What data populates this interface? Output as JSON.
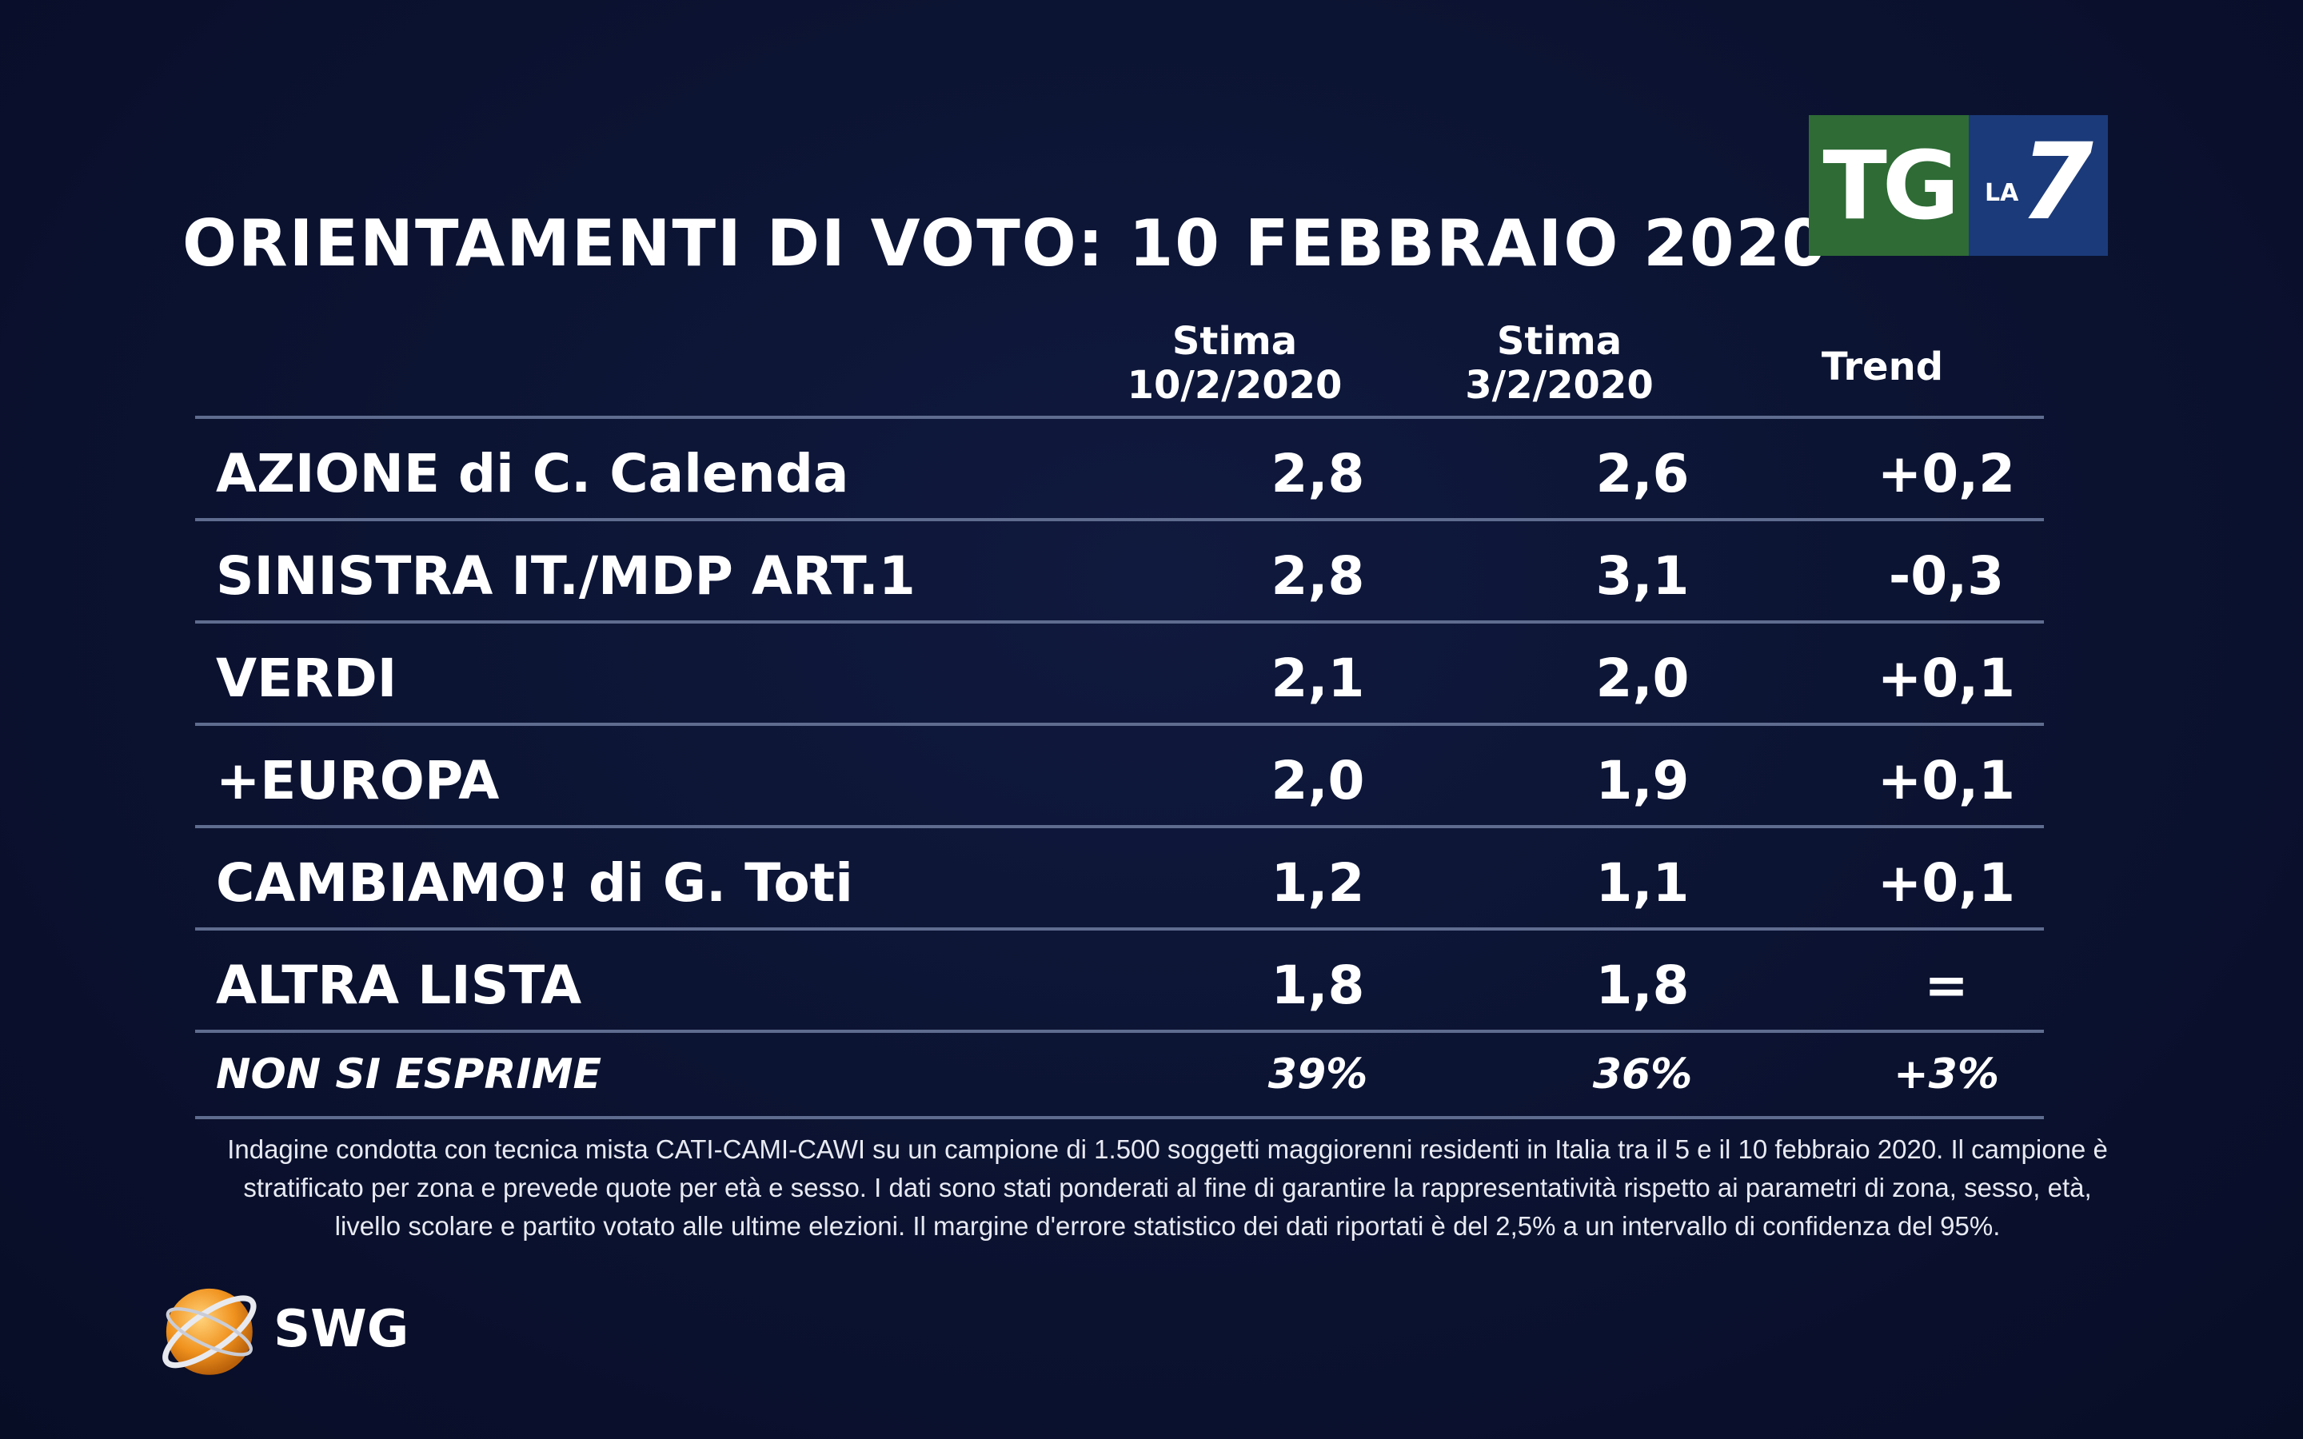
{
  "title": "ORIENTAMENTI DI VOTO: 10 FEBBRAIO 2020",
  "logo": {
    "tg": "TG",
    "la": "LA",
    "seven": "7"
  },
  "chart_data": {
    "type": "table",
    "columns": [
      {
        "line1": "Stima",
        "line2": "10/2/2020"
      },
      {
        "line1": "Stima",
        "line2": "3/2/2020"
      },
      {
        "line1": "Trend",
        "line2": ""
      }
    ],
    "rows": [
      {
        "party": "AZIONE di C. Calenda",
        "current": "2,8",
        "previous": "2,6",
        "trend": "+0,2"
      },
      {
        "party": "SINISTRA IT./MDP ART.1",
        "current": "2,8",
        "previous": "3,1",
        "trend": "-0,3"
      },
      {
        "party": "VERDI",
        "current": "2,1",
        "previous": "2,0",
        "trend": "+0,1"
      },
      {
        "party": "+EUROPA",
        "current": "2,0",
        "previous": "1,9",
        "trend": "+0,1"
      },
      {
        "party": "CAMBIAMO! di G. Toti",
        "current": "1,2",
        "previous": "1,1",
        "trend": "+0,1"
      },
      {
        "party": "ALTRA LISTA",
        "current": "1,8",
        "previous": "1,8",
        "trend": "="
      }
    ],
    "non_si_esprime": {
      "party": "NON SI ESPRIME",
      "current": "39%",
      "previous": "36%",
      "trend": "+3%"
    }
  },
  "note_lines": [
    "Indagine condotta con tecnica mista CATI-CAMI-CAWI su un campione di 1.500 soggetti maggiorenni residenti in Italia tra il 5 e il 10 febbraio 2020. Il campione è",
    "stratificato per zona e prevede quote per età e sesso. I dati sono stati ponderati al fine di garantire la rappresentatività rispetto ai parametri di zona, sesso, età,",
    "livello scolare e partito votato alle ultime elezioni. Il margine d'errore statistico dei dati riportati è del 2,5% a un intervallo di confidenza del 95%."
  ],
  "brand": {
    "name": "SWG"
  },
  "colors": {
    "background": "#0b1230",
    "tg_green": "#2e6b35",
    "la7_blue": "#1b3a7a",
    "swg_orange": "#f0921e"
  }
}
